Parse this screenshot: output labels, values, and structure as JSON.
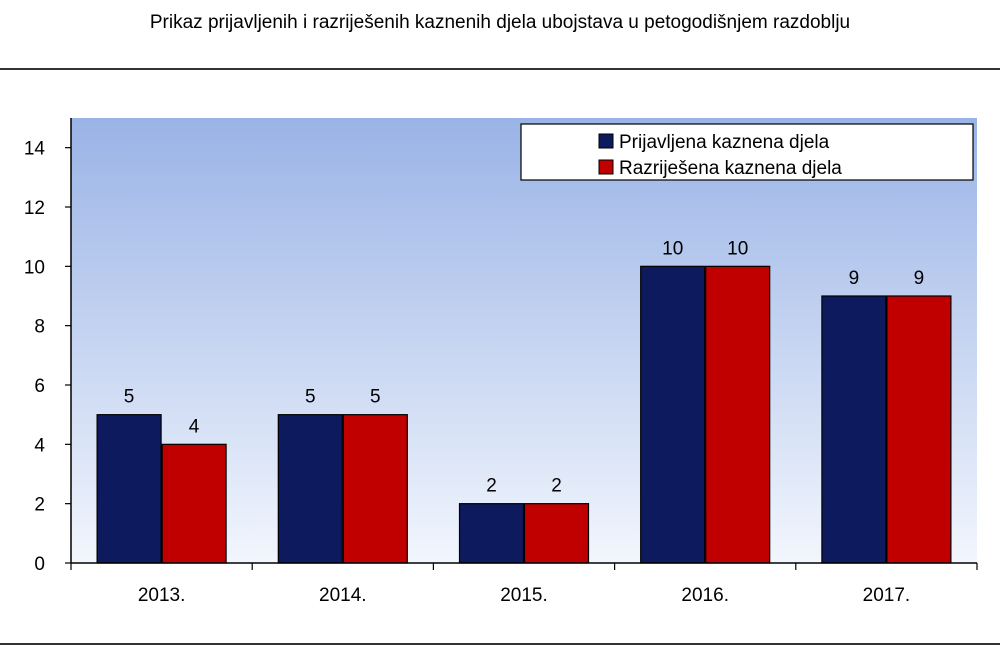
{
  "chart_data": {
    "type": "bar",
    "title": "Prikaz prijavljenih i razriješenih kaznenih djela ubojstava u petogodišnjem razdoblju",
    "xlabel": "",
    "ylabel": "",
    "categories": [
      "2013.",
      "2014.",
      "2015.",
      "2016.",
      "2017."
    ],
    "series": [
      {
        "name": "Prijavljena kaznena djela",
        "values": [
          5,
          5,
          2,
          10,
          9
        ],
        "color": "#0d1b5e"
      },
      {
        "name": "Razriješena kaznena djela",
        "values": [
          4,
          5,
          2,
          10,
          9
        ],
        "color": "#c00000"
      }
    ],
    "ylim": [
      0,
      15
    ],
    "yticks": [
      0,
      2,
      4,
      6,
      8,
      10,
      12,
      14
    ],
    "legend": "top-right",
    "data_labels": true,
    "grid": false,
    "plot_background": [
      "#9ab3e6",
      "#f2f6fd"
    ]
  }
}
